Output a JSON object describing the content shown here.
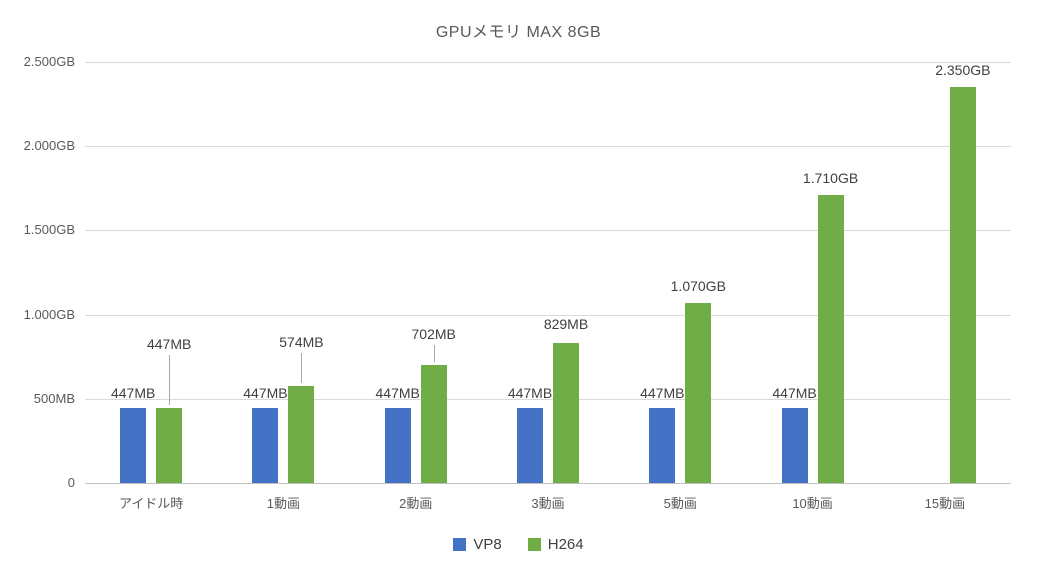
{
  "chart_data": {
    "type": "bar",
    "title": "GPUメモリ MAX 8GB",
    "categories": [
      "アイドル時",
      "1動画",
      "2動画",
      "3動画",
      "5動画",
      "10動画",
      "15動画"
    ],
    "unit": "MB",
    "ylim": [
      0,
      2500
    ],
    "grid": true,
    "legend_position": "bottom",
    "y_ticks": [
      {
        "value": 0,
        "label": "0"
      },
      {
        "value": 500,
        "label": "500MB"
      },
      {
        "value": 1000,
        "label": "1.000GB"
      },
      {
        "value": 1500,
        "label": "1.500GB"
      },
      {
        "value": 2000,
        "label": "2.000GB"
      },
      {
        "value": 2500,
        "label": "2.500GB"
      }
    ],
    "series": [
      {
        "name": "VP8",
        "color": "#4472C4",
        "values": [
          447,
          447,
          447,
          447,
          447,
          447,
          null
        ],
        "labels": [
          "447MB",
          "447MB",
          "447MB",
          "447MB",
          "447MB",
          "447MB",
          null
        ]
      },
      {
        "name": "H264",
        "color": "#70AD47",
        "values": [
          447,
          574,
          702,
          829,
          1070,
          1710,
          2350
        ],
        "labels": [
          "447MB",
          "574MB",
          "702MB",
          "829MB",
          "1.070GB",
          "1.710GB",
          "2.350GB"
        ],
        "label_gaps": [
          55,
          35,
          22,
          10,
          8,
          8,
          8
        ]
      }
    ],
    "colors": {
      "grid": "#D9D9D9",
      "baseline": "#BFBFBF",
      "text": "#595959",
      "data_label": "#404040",
      "leader_line": "#A6A6A6"
    }
  }
}
